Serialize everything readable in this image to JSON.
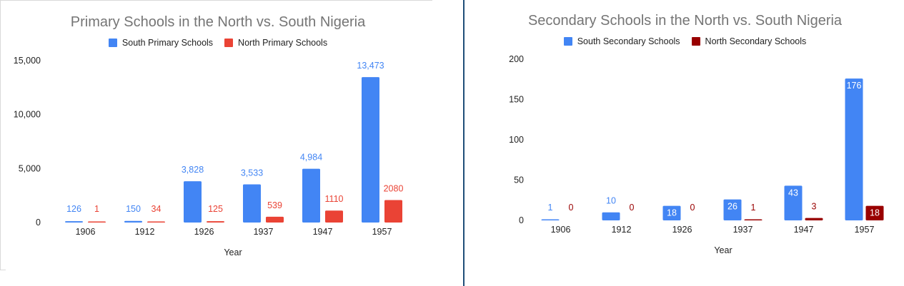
{
  "chart_data": [
    {
      "type": "bar",
      "title": "Primary Schools in the North vs. South Nigeria",
      "xlabel": "Year",
      "ylabel": "",
      "categories": [
        "1906",
        "1912",
        "1926",
        "1937",
        "1947",
        "1957"
      ],
      "series": [
        {
          "name": "South Primary Schools",
          "color": "#4285f4",
          "values": [
            126,
            150,
            3828,
            3533,
            4984,
            13473
          ],
          "labels": [
            "126",
            "150",
            "3,828",
            "3,533",
            "4,984",
            "13,473"
          ]
        },
        {
          "name": "North Primary Schools",
          "color": "#ea4335",
          "values": [
            1,
            34,
            125,
            539,
            1110,
            2080
          ],
          "labels": [
            "1",
            "34",
            "125",
            "539",
            "1110",
            "2080"
          ]
        }
      ],
      "ylim": [
        0,
        15000
      ],
      "yticks": [
        0,
        5000,
        10000,
        15000
      ],
      "ytick_labels": [
        "0",
        "5,000",
        "10,000",
        "15,000"
      ],
      "legend_position": "top",
      "grid": false
    },
    {
      "type": "bar",
      "title": "Secondary Schools in the North vs. South Nigeria",
      "xlabel": "Year",
      "ylabel": "",
      "categories": [
        "1906",
        "1912",
        "1926",
        "1937",
        "1947",
        "1957"
      ],
      "series": [
        {
          "name": "South Secondary Schools",
          "color": "#4285f4",
          "values": [
            1,
            10,
            18,
            26,
            43,
            176
          ],
          "labels": [
            "1",
            "10",
            "18",
            "26",
            "43",
            "176"
          ]
        },
        {
          "name": "North Secondary Schools",
          "color": "#990000",
          "values": [
            0,
            0,
            0,
            1,
            3,
            18
          ],
          "labels": [
            "0",
            "0",
            "0",
            "1",
            "3",
            "18"
          ]
        }
      ],
      "ylim": [
        0,
        200
      ],
      "yticks": [
        0,
        50,
        100,
        150,
        200
      ],
      "ytick_labels": [
        "0",
        "50",
        "100",
        "150",
        "200"
      ],
      "legend_position": "top",
      "grid": false
    }
  ]
}
